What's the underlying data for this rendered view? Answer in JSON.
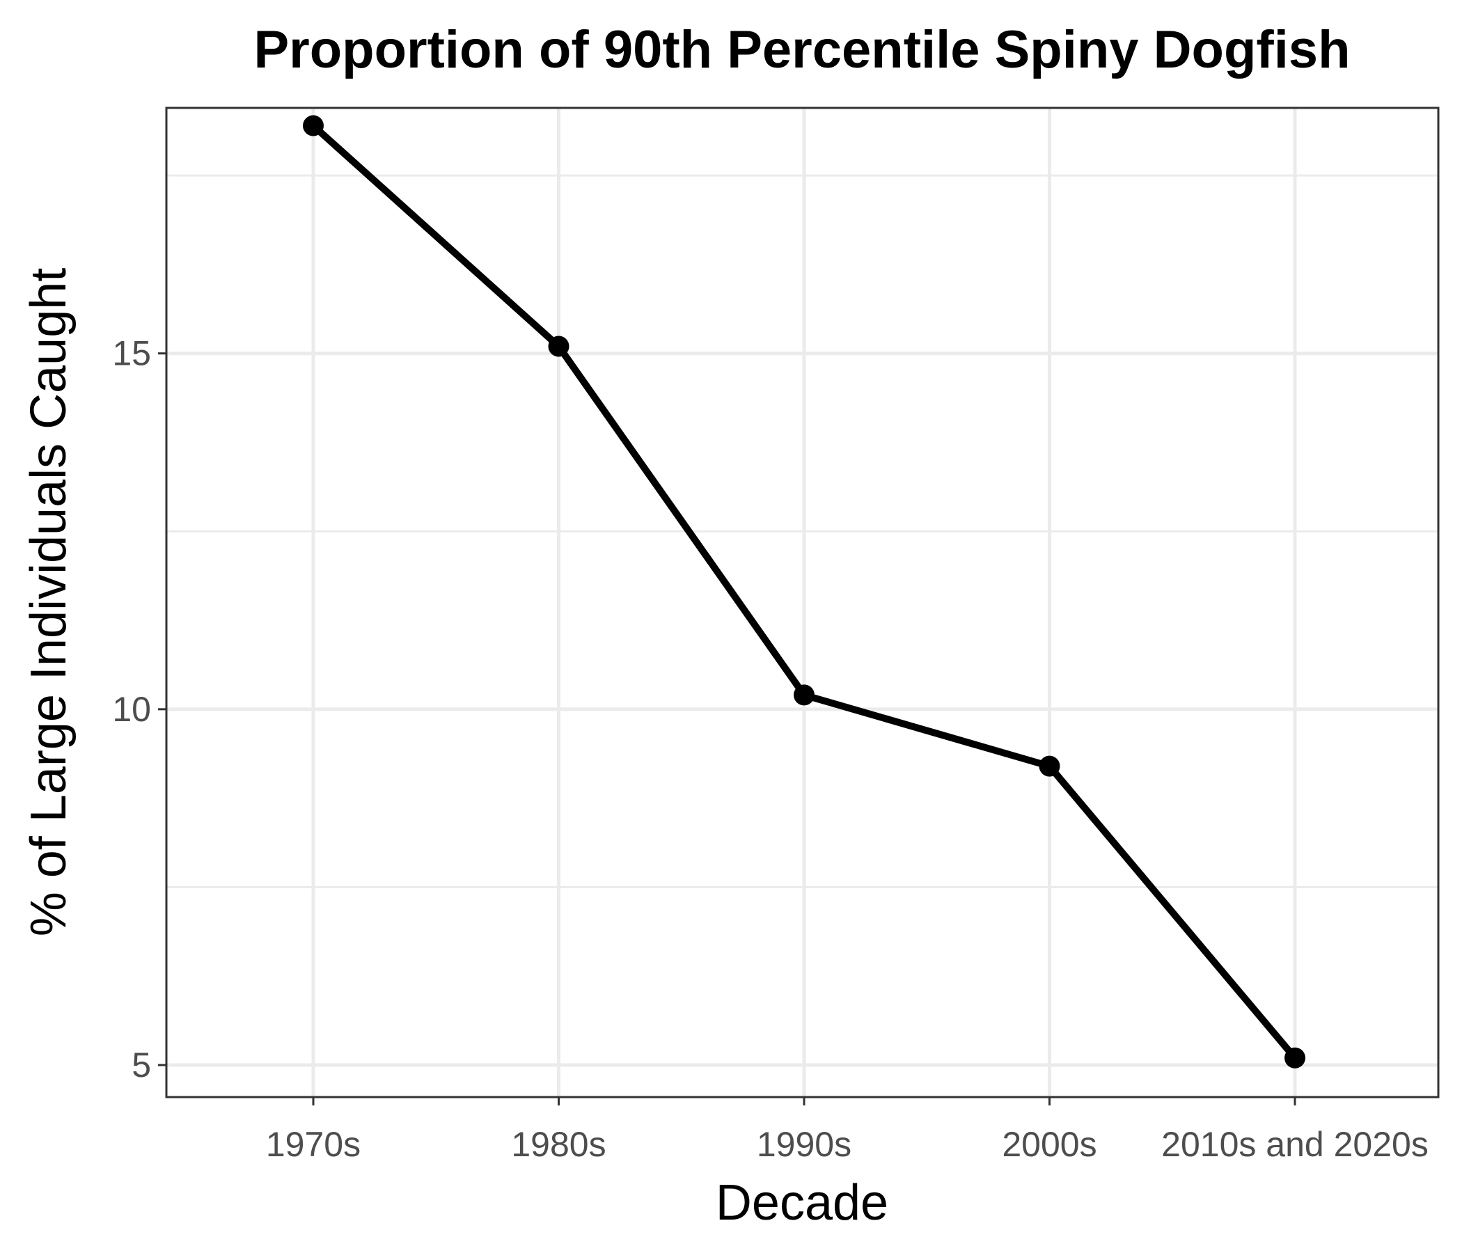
{
  "chart_data": {
    "type": "line",
    "title": "Proportion of 90th Percentile Spiny Dogfish",
    "xlabel": "Decade",
    "ylabel": "% of Large Individuals Caught",
    "categories": [
      "1970s",
      "1980s",
      "1990s",
      "2000s",
      "2010s and 2020s"
    ],
    "values": [
      18.2,
      15.1,
      10.2,
      9.2,
      5.1
    ],
    "ylim": [
      4.55,
      18.45
    ],
    "y_ticks": [
      5,
      10,
      15
    ],
    "y_minor_ticks": [
      7.5,
      12.5,
      17.5
    ],
    "grid": true,
    "legend": "none",
    "colors": {
      "line": "#000000",
      "grid": "#ebebeb",
      "border": "#333333",
      "tick_text": "#4d4d4d"
    }
  }
}
